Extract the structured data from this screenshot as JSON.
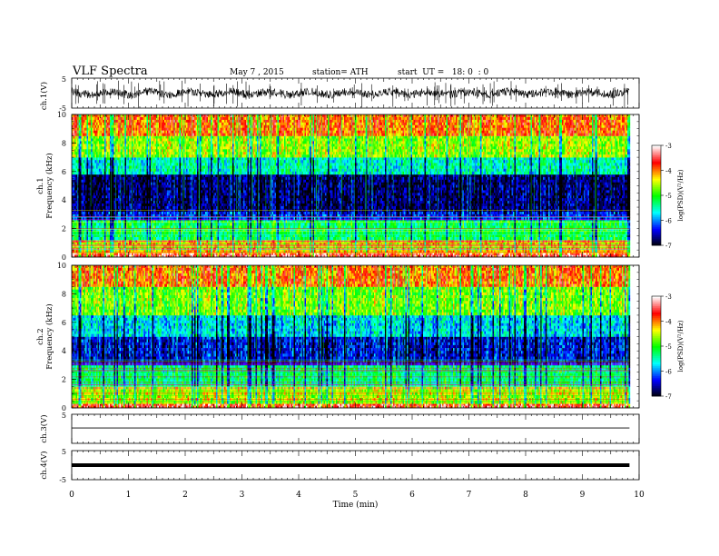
{
  "header": {
    "title": "VLF Spectra",
    "date": "May 7 , 2015",
    "station": "station= ATH",
    "start": "start  UT =   18: 0  : 0"
  },
  "chart_data": [
    {
      "type": "line",
      "name": "ch1-waveform",
      "ylabel": "ch.1(V)",
      "yticks": [
        "5",
        "-5"
      ],
      "ylim": [
        -5,
        5
      ],
      "xlim": [
        0,
        10
      ],
      "data_end_min": 9.83,
      "description_level": 0,
      "noise_amplitude": 0.5
    },
    {
      "type": "heatmap",
      "name": "ch1-spectrogram",
      "ylabel": "ch.1 Frequency (kHz)",
      "yticks": [
        "0",
        "2",
        "4",
        "6",
        "8",
        "10"
      ],
      "ylim": [
        0,
        10
      ],
      "xlim": [
        0,
        10
      ],
      "colorbar": {
        "label": "log(PSD)(V²/Hz)",
        "ticks": [
          "-3",
          "-4",
          "-5",
          "-6",
          "-7"
        ],
        "range": [
          -7,
          -3
        ]
      },
      "bands_khz": [
        {
          "from": 0,
          "to": 0.3,
          "logpsd": -3.5
        },
        {
          "from": 0.3,
          "to": 1.2,
          "logpsd": -4.2
        },
        {
          "from": 1.2,
          "to": 2.6,
          "logpsd": -5.2
        },
        {
          "from": 2.6,
          "to": 3.2,
          "logpsd": -6.3
        },
        {
          "from": 3.2,
          "to": 5.8,
          "logpsd": -6.7
        },
        {
          "from": 5.8,
          "to": 7.0,
          "logpsd": -5.5
        },
        {
          "from": 7.0,
          "to": 8.5,
          "logpsd": -4.6
        },
        {
          "from": 8.5,
          "to": 10,
          "logpsd": -3.9
        }
      ]
    },
    {
      "type": "heatmap",
      "name": "ch2-spectrogram",
      "ylabel": "ch.2 Frequency (kHz)",
      "yticks": [
        "0",
        "2",
        "4",
        "6",
        "8",
        "10"
      ],
      "ylim": [
        0,
        10
      ],
      "xlim": [
        0,
        10
      ],
      "colorbar": {
        "label": "log(PSD)(V²/Hz)",
        "ticks": [
          "-3",
          "-4",
          "-5",
          "-6",
          "-7"
        ],
        "range": [
          -7,
          -3
        ]
      },
      "bands_khz": [
        {
          "from": 0,
          "to": 0.3,
          "logpsd": -3.5
        },
        {
          "from": 0.3,
          "to": 1.5,
          "logpsd": -4.5
        },
        {
          "from": 1.5,
          "to": 3.0,
          "logpsd": -5.3
        },
        {
          "from": 3.0,
          "to": 5.0,
          "logpsd": -6.4
        },
        {
          "from": 5.0,
          "to": 6.5,
          "logpsd": -5.7
        },
        {
          "from": 6.5,
          "to": 8.5,
          "logpsd": -4.7
        },
        {
          "from": 8.5,
          "to": 10,
          "logpsd": -3.9
        }
      ]
    },
    {
      "type": "line",
      "name": "ch3-waveform",
      "ylabel": "ch.3(V)",
      "yticks": [
        "5"
      ],
      "ylim": [
        -5,
        5
      ],
      "xlim": [
        0,
        10
      ],
      "level": 0
    },
    {
      "type": "line",
      "name": "ch4-waveform",
      "ylabel": "ch.4(V)",
      "yticks": [
        "5",
        "-5"
      ],
      "ylim": [
        -5,
        5
      ],
      "xlim": [
        0,
        10
      ],
      "level": 0
    }
  ],
  "xaxis": {
    "label": "Time  (min)",
    "ticks": [
      "0",
      "1",
      "2",
      "3",
      "4",
      "5",
      "6",
      "7",
      "8",
      "9",
      "10"
    ]
  },
  "colors": {
    "colormap": [
      "#000000",
      "#0000ff",
      "#00ffff",
      "#00ff00",
      "#ffff00",
      "#ff0000",
      "#ffffff"
    ]
  }
}
